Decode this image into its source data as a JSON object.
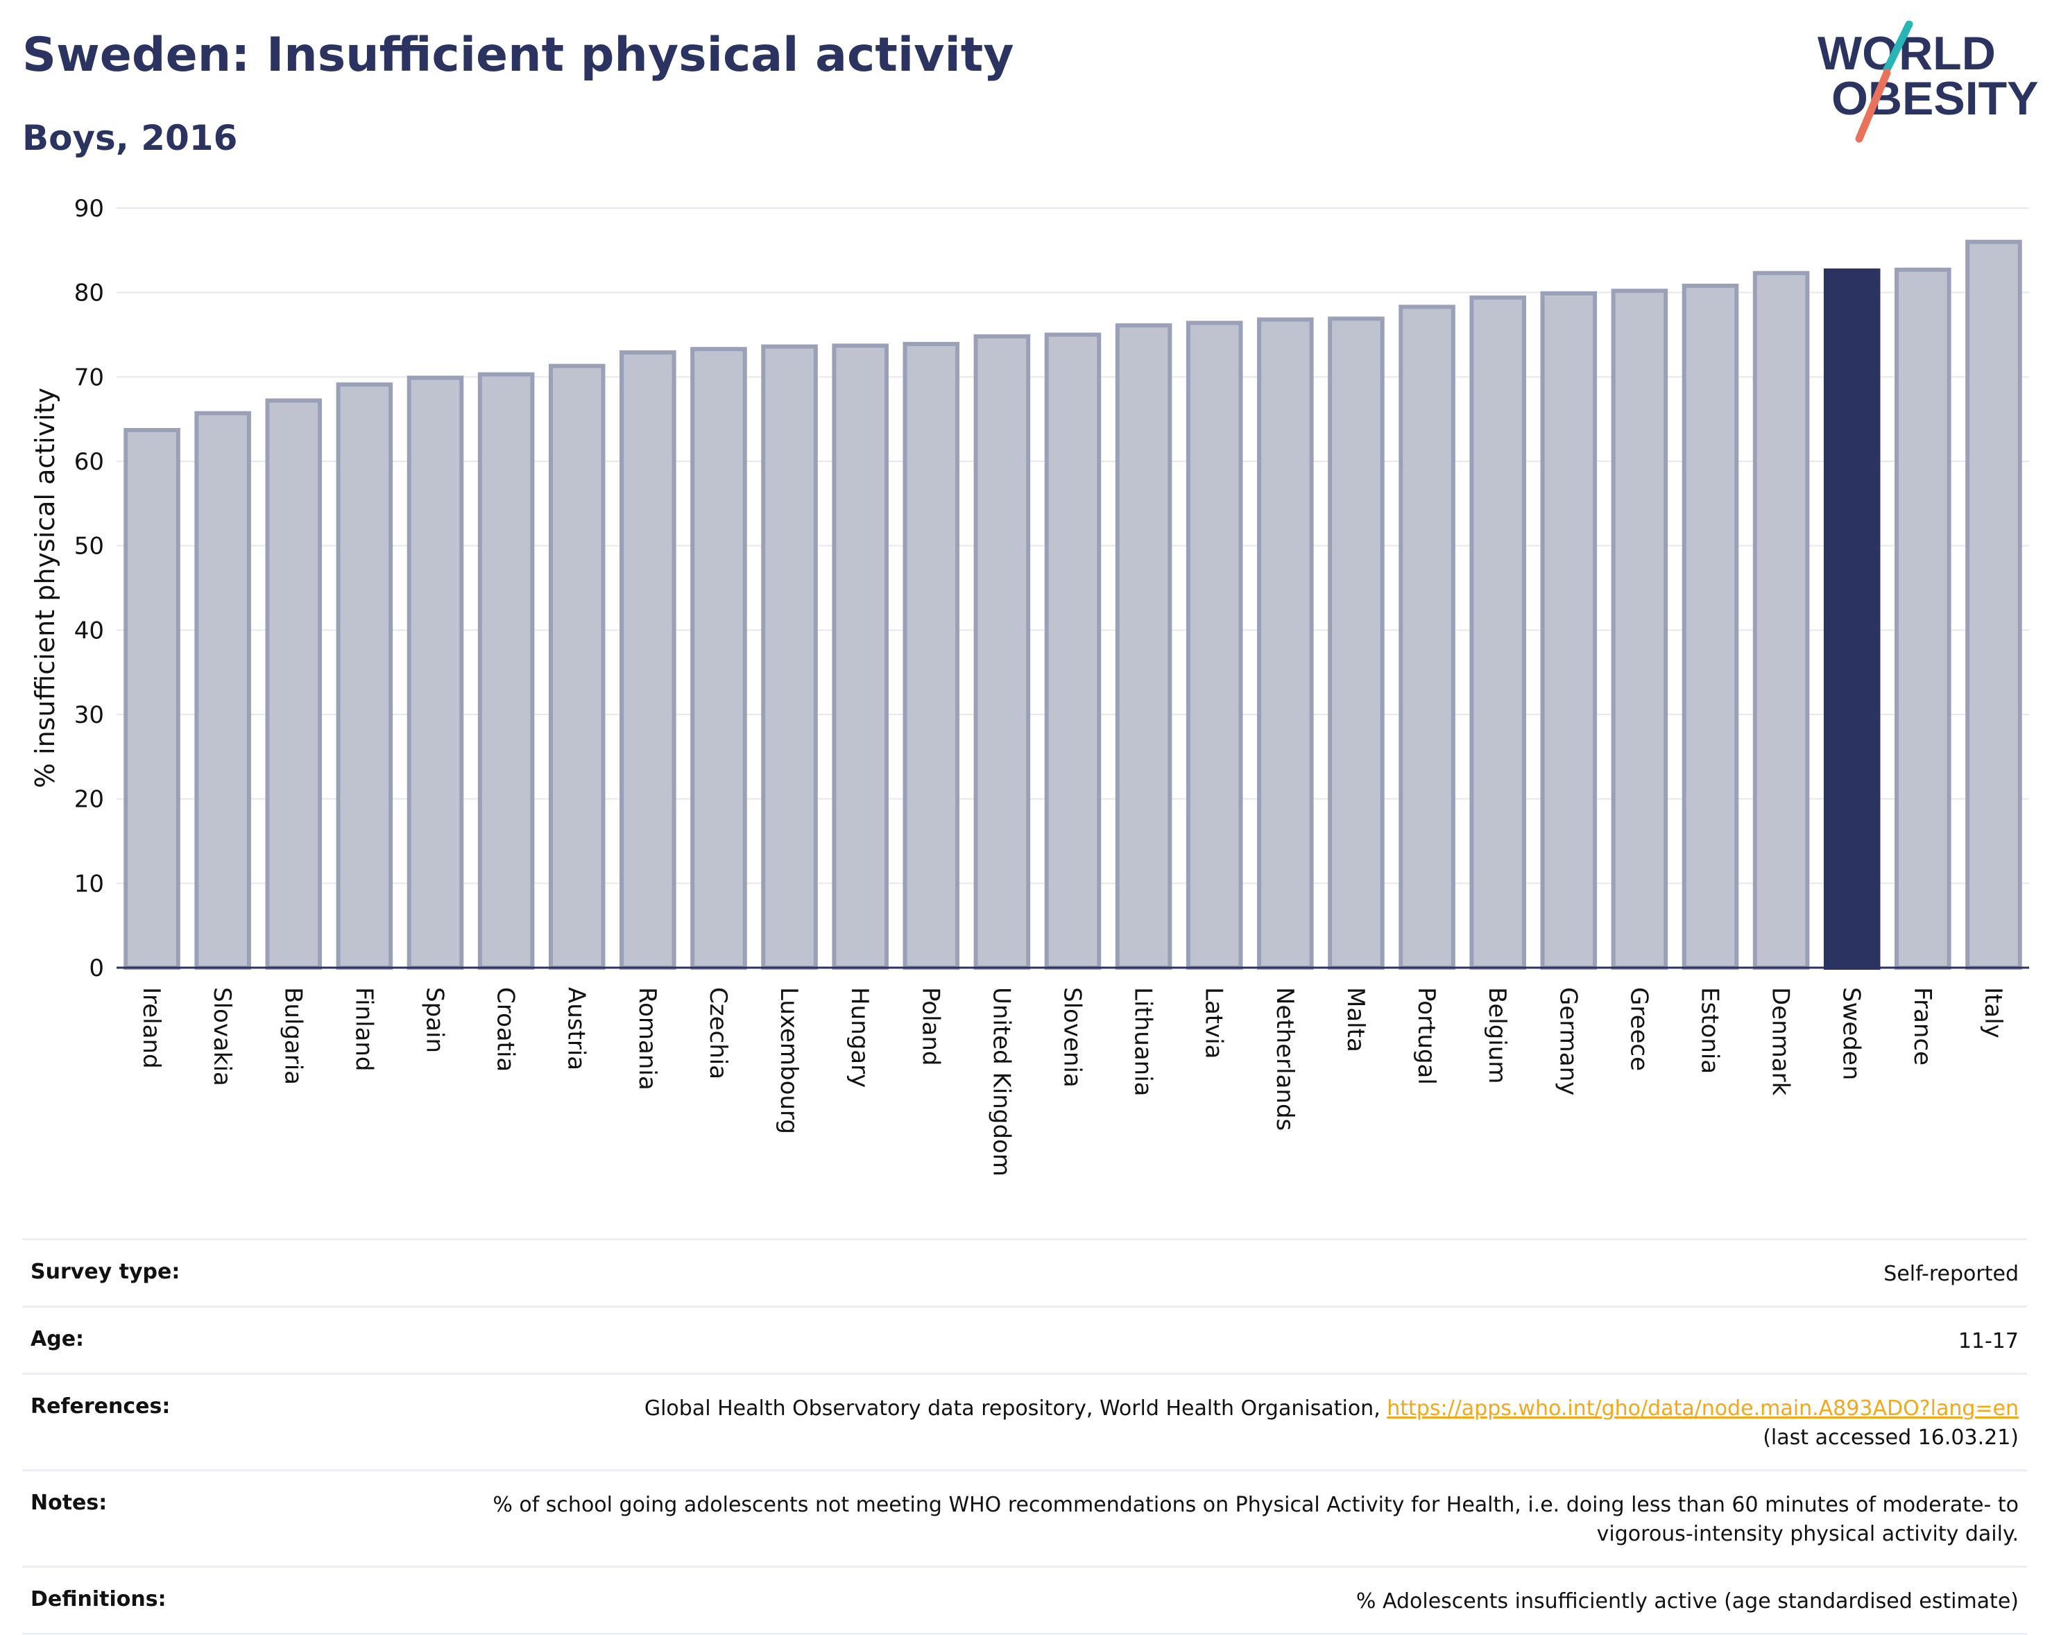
{
  "header": {
    "title": "Sweden: Insufficient physical activity",
    "subtitle": "Boys, 2016"
  },
  "logo": {
    "line1": "WORLD",
    "line2": "OBESITY",
    "colors": {
      "text": "#2b3461",
      "teal": "#29b5b5",
      "coral": "#e8735a"
    }
  },
  "chart_data": {
    "type": "bar",
    "title": "",
    "ylabel": "% insufficient physical activity",
    "xlabel": "",
    "ylim": [
      0,
      90
    ],
    "yticks": [
      0,
      10,
      20,
      30,
      40,
      50,
      60,
      70,
      80,
      90
    ],
    "grid": true,
    "legend": "none",
    "highlight": "Sweden",
    "colors": {
      "bar": "#bfc3d0",
      "bar_border": "#9aa0b8",
      "highlight": "#2b3461",
      "axis": "#2b3461",
      "grid": "#e6e8ef"
    },
    "categories": [
      "Ireland",
      "Slovakia",
      "Bulgaria",
      "Finland",
      "Spain",
      "Croatia",
      "Austria",
      "Romania",
      "Czechia",
      "Luxembourg",
      "Hungary",
      "Poland",
      "United Kingdom",
      "Slovenia",
      "Lithuania",
      "Latvia",
      "Netherlands",
      "Malta",
      "Portugal",
      "Belgium",
      "Germany",
      "Greece",
      "Estonia",
      "Denmark",
      "Sweden",
      "France",
      "Italy"
    ],
    "values": [
      63.7,
      65.7,
      67.2,
      69.1,
      69.9,
      70.3,
      71.3,
      72.9,
      73.3,
      73.6,
      73.7,
      73.9,
      74.8,
      75.0,
      76.1,
      76.4,
      76.8,
      76.9,
      78.3,
      79.4,
      79.9,
      80.2,
      80.8,
      82.3,
      82.6,
      82.7,
      86.0
    ]
  },
  "info_table": {
    "rows": [
      {
        "label": "Survey type:",
        "value": "Self-reported"
      },
      {
        "label": "Age:",
        "value": "11-17"
      },
      {
        "label": "References:",
        "value": "Global Health Observatory data repository, World Health Organisation, ",
        "link": "https://apps.who.int/gho/data/node.main.A893ADO?lang=en",
        "value2": "(last accessed 16.03.21)"
      },
      {
        "label": "Notes:",
        "value": "% of school going adolescents not meeting WHO recommendations on Physical Activity for Health, i.e. doing less than 60 minutes of moderate- to vigorous-intensity physical activity daily."
      },
      {
        "label": "Definitions:",
        "value": "% Adolescents insufficiently active (age standardised estimate)"
      }
    ]
  }
}
